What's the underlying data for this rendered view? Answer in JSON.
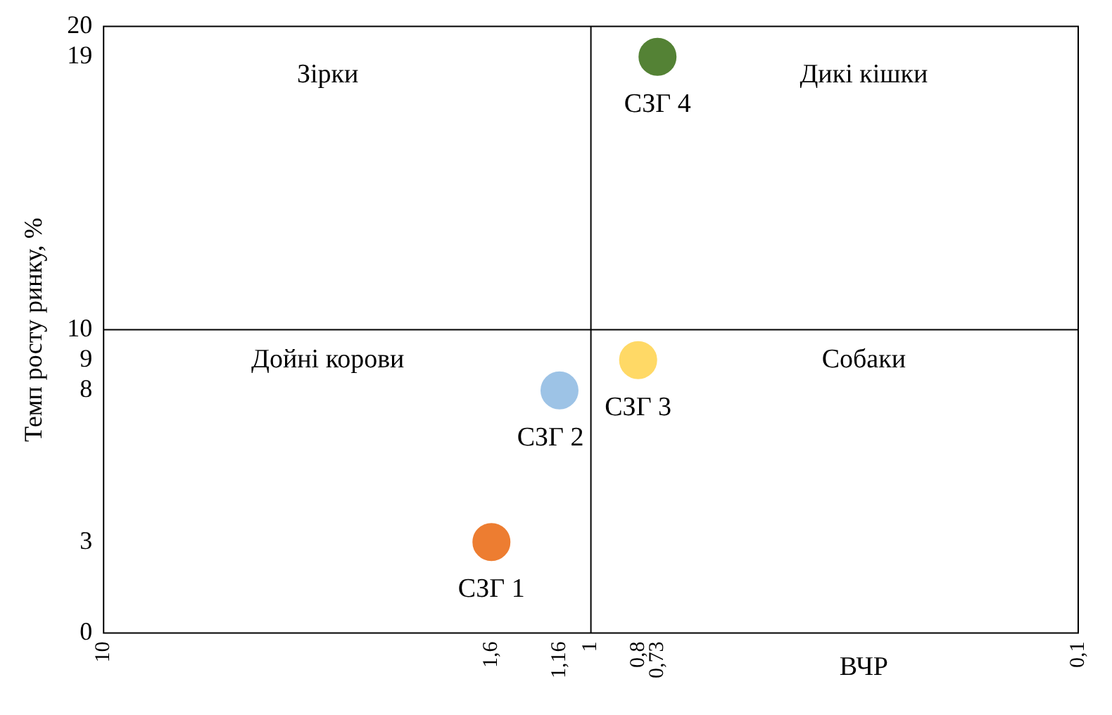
{
  "chart_data": {
    "type": "scatter",
    "xlabel": "ВЧР",
    "ylabel": "Темп росту ринку, %",
    "log": "x",
    "grid": false,
    "legend": false,
    "marker": "circle",
    "xlim": [
      10,
      0.1
    ],
    "xticks": [
      10,
      {
        "value": 1.6,
        "label": "1,6"
      },
      {
        "value": 1.16,
        "label": "1,16"
      },
      1,
      {
        "value": 0.8,
        "label": "0,8"
      },
      {
        "value": 0.73,
        "label": "0,73"
      },
      {
        "value": 0.1,
        "label": "0,1"
      }
    ],
    "ylim": [
      0,
      20
    ],
    "yticks": [
      0,
      3,
      8,
      9,
      10,
      19,
      20
    ],
    "ref_lines": [
      {
        "axis": "x",
        "value": 1,
        "color": "#000000"
      },
      {
        "axis": "y",
        "value": 10,
        "color": "#000000"
      }
    ],
    "annotations": [
      "Зірки",
      "Дикі кішки",
      "Дойні корови",
      "Собаки"
    ],
    "series": [
      {
        "name": "СЗГ 1",
        "color": "#ed7d31",
        "x": [
          1.6
        ],
        "values": [
          3
        ]
      },
      {
        "name": "СЗГ 2",
        "color": "#9dc3e6",
        "x": [
          1.16
        ],
        "values": [
          8
        ]
      },
      {
        "name": "СЗГ 3",
        "color": "#ffd966",
        "x": [
          0.8
        ],
        "values": [
          9
        ]
      },
      {
        "name": "СЗГ 4",
        "color": "#548235",
        "x": [
          0.73
        ],
        "values": [
          19
        ]
      }
    ]
  }
}
